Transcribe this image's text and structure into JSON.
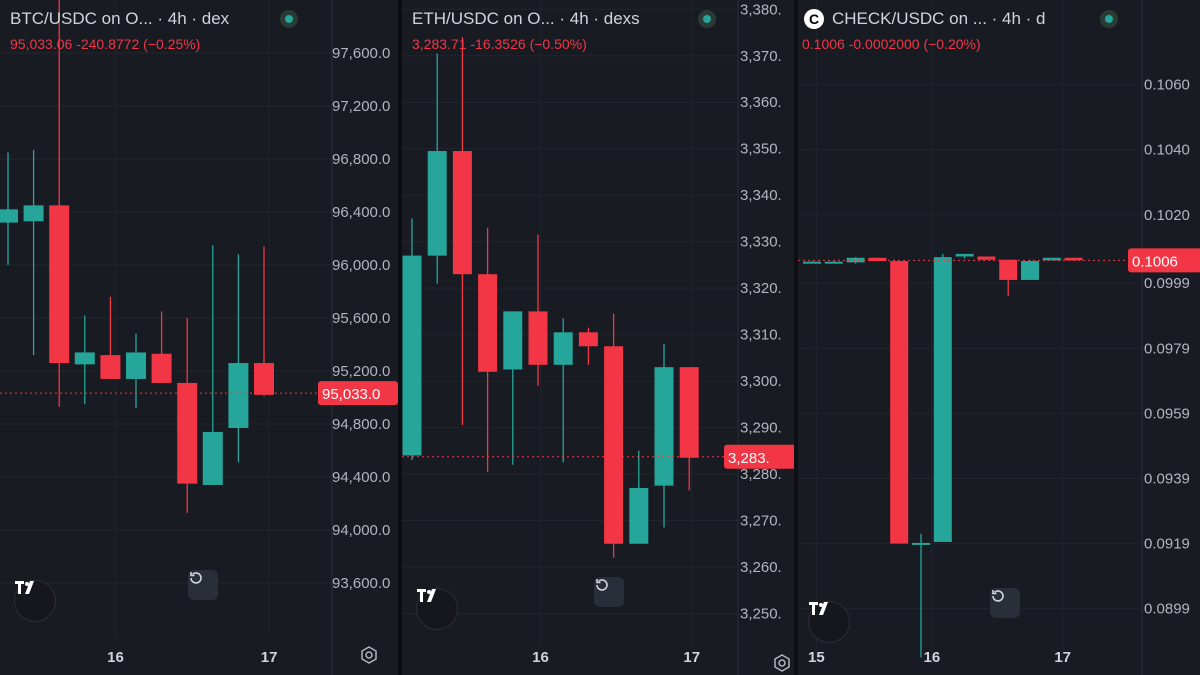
{
  "panels": [
    {
      "header": "BTC/USDC on O... · 4h · dex",
      "quote": {
        "price": "95,033.06",
        "change": "-240.8772",
        "change_pct": "(−0.25%)"
      },
      "current_price_label": "95,033.0",
      "colors": {
        "up": "#26a69a",
        "down": "#f23645"
      }
    },
    {
      "header": "ETH/USDC on O... · 4h · dexs",
      "quote": {
        "price": "3,283.71",
        "change": "-16.3526",
        "change_pct": "(−0.50%)"
      },
      "current_price_label": "3,283.",
      "colors": {
        "up": "#26a69a",
        "down": "#f23645"
      }
    },
    {
      "header": "CHECK/USDC on ... · 4h · d",
      "symbol_icon": "C",
      "quote": {
        "price": "0.1006",
        "change": "-0.0002000",
        "change_pct": "(−0.20%)"
      },
      "current_price_label": "0.1006",
      "colors": {
        "up": "#26a69a",
        "down": "#f23645"
      }
    }
  ],
  "chart_data": [
    {
      "type": "candlestick",
      "title": "BTC/USDC on O... · 4h · dex",
      "ylim": [
        93200,
        98000
      ],
      "ticks": [
        {
          "v": 97600,
          "label": "97,600.0"
        },
        {
          "v": 97200,
          "label": "97,200.0"
        },
        {
          "v": 96800,
          "label": "96,800.0"
        },
        {
          "v": 96400,
          "label": "96,400.0"
        },
        {
          "v": 96000,
          "label": "96,000.0"
        },
        {
          "v": 95600,
          "label": "95,600.0"
        },
        {
          "v": 95200,
          "label": "95,200.0"
        },
        {
          "v": 94800,
          "label": "94,800.0"
        },
        {
          "v": 94400,
          "label": "94,400.0"
        },
        {
          "v": 94000,
          "label": "94,000.0"
        },
        {
          "v": 93600,
          "label": "93,600.0"
        }
      ],
      "xticks": [
        {
          "label": "16",
          "at": 4.2
        },
        {
          "label": "17",
          "at": 10.2
        }
      ],
      "current": 95033.06,
      "candles": [
        {
          "o": 96320,
          "c": 96420,
          "h": 96850,
          "l": 96000
        },
        {
          "o": 96330,
          "c": 96450,
          "h": 96870,
          "l": 95320
        },
        {
          "o": 96450,
          "c": 95260,
          "h": 98000,
          "l": 94930
        },
        {
          "o": 95250,
          "c": 95340,
          "h": 95620,
          "l": 94950
        },
        {
          "o": 95320,
          "c": 95140,
          "h": 95760,
          "l": 95140
        },
        {
          "o": 95140,
          "c": 95340,
          "h": 95480,
          "l": 94920
        },
        {
          "o": 95330,
          "c": 95110,
          "h": 95650,
          "l": 95110
        },
        {
          "o": 95110,
          "c": 94350,
          "h": 95600,
          "l": 94130
        },
        {
          "o": 94340,
          "c": 94740,
          "h": 96150,
          "l": 94340
        },
        {
          "o": 94770,
          "c": 95260,
          "h": 96080,
          "l": 94510
        },
        {
          "o": 95260,
          "c": 95020,
          "h": 96140,
          "l": 95010
        }
      ]
    },
    {
      "type": "candlestick",
      "title": "ETH/USDC on O... · 4h · dexs",
      "ylim": [
        3243,
        3382
      ],
      "ticks": [
        {
          "v": 3380,
          "label": "3,380."
        },
        {
          "v": 3370,
          "label": "3,370."
        },
        {
          "v": 3360,
          "label": "3,360."
        },
        {
          "v": 3350,
          "label": "3,350."
        },
        {
          "v": 3340,
          "label": "3,340."
        },
        {
          "v": 3330,
          "label": "3,330."
        },
        {
          "v": 3320,
          "label": "3,320."
        },
        {
          "v": 3310,
          "label": "3,310."
        },
        {
          "v": 3300,
          "label": "3,300."
        },
        {
          "v": 3290,
          "label": "3,290."
        },
        {
          "v": 3280,
          "label": "3,280."
        },
        {
          "v": 3270,
          "label": "3,270."
        },
        {
          "v": 3260,
          "label": "3,260."
        },
        {
          "v": 3250,
          "label": "3,250."
        }
      ],
      "xticks": [
        {
          "label": "16",
          "at": 5.1
        },
        {
          "label": "17",
          "at": 11.1
        }
      ],
      "current": 3283.71,
      "candles": [
        {
          "o": 3284.0,
          "c": 3327.0,
          "h": 3335.0,
          "l": 3283.0
        },
        {
          "o": 3327.0,
          "c": 3349.5,
          "h": 3370.5,
          "l": 3321.0
        },
        {
          "o": 3349.5,
          "c": 3323.0,
          "h": 3374.0,
          "l": 3290.5
        },
        {
          "o": 3323.0,
          "c": 3302.0,
          "h": 3333.0,
          "l": 3280.5
        },
        {
          "o": 3302.5,
          "c": 3315.0,
          "h": 3315.0,
          "l": 3282.0
        },
        {
          "o": 3315.0,
          "c": 3303.5,
          "h": 3331.5,
          "l": 3299.0
        },
        {
          "o": 3303.5,
          "c": 3310.5,
          "h": 3313.5,
          "l": 3282.5
        },
        {
          "o": 3310.5,
          "c": 3307.5,
          "h": 3311.5,
          "l": 3303.5
        },
        {
          "o": 3307.5,
          "c": 3265.0,
          "h": 3314.5,
          "l": 3262.0
        },
        {
          "o": 3265.0,
          "c": 3277.0,
          "h": 3285.0,
          "l": 3265.0
        },
        {
          "o": 3277.5,
          "c": 3303.0,
          "h": 3308.0,
          "l": 3268.5
        },
        {
          "o": 3303.0,
          "c": 3283.5,
          "h": 3303.0,
          "l": 3276.5
        }
      ]
    },
    {
      "type": "candlestick",
      "title": "CHECK/USDC on ... · 4h · d",
      "ylim": [
        0.0882,
        0.1086
      ],
      "ticks": [
        {
          "v": 0.106,
          "label": "0.1060"
        },
        {
          "v": 0.104,
          "label": "0.1040"
        },
        {
          "v": 0.102,
          "label": "0.1020"
        },
        {
          "v": 0.0999,
          "label": "0.0999"
        },
        {
          "v": 0.0979,
          "label": "0.0979"
        },
        {
          "v": 0.0959,
          "label": "0.0959"
        },
        {
          "v": 0.0939,
          "label": "0.0939"
        },
        {
          "v": 0.0919,
          "label": "0.0919"
        },
        {
          "v": 0.0899,
          "label": "0.0899"
        }
      ],
      "xticks": [
        {
          "label": "15",
          "at": 0.2
        },
        {
          "label": "16",
          "at": 5.5
        },
        {
          "label": "17",
          "at": 11.5
        }
      ],
      "current": 0.1006,
      "candles": [
        {
          "o": 0.10054,
          "c": 0.10056,
          "h": 0.10058,
          "l": 0.10052
        },
        {
          "o": 0.10054,
          "c": 0.10056,
          "h": 0.10058,
          "l": 0.10052
        },
        {
          "o": 0.10054,
          "c": 0.10068,
          "h": 0.1007,
          "l": 0.1005
        },
        {
          "o": 0.10068,
          "c": 0.10058,
          "h": 0.10068,
          "l": 0.10058
        },
        {
          "o": 0.10058,
          "c": 0.0919,
          "h": 0.10058,
          "l": 0.0919
        },
        {
          "o": 0.09186,
          "c": 0.09192,
          "h": 0.0922,
          "l": 0.0884
        },
        {
          "o": 0.09195,
          "c": 0.1007,
          "h": 0.1008,
          "l": 0.09195
        },
        {
          "o": 0.10072,
          "c": 0.1008,
          "h": 0.1008,
          "l": 0.10066
        },
        {
          "o": 0.10072,
          "c": 0.10062,
          "h": 0.10072,
          "l": 0.10062
        },
        {
          "o": 0.10062,
          "c": 0.1,
          "h": 0.10062,
          "l": 0.0995
        },
        {
          "o": 0.1,
          "c": 0.10058,
          "h": 0.1006,
          "l": 0.1
        },
        {
          "o": 0.1006,
          "c": 0.10068,
          "h": 0.10068,
          "l": 0.1006
        },
        {
          "o": 0.10068,
          "c": 0.1006,
          "h": 0.10068,
          "l": 0.1006
        }
      ]
    }
  ]
}
